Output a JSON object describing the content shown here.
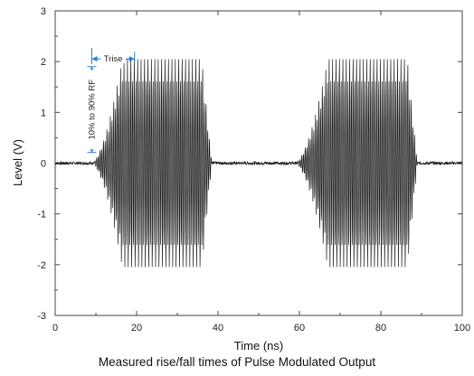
{
  "chart_data": {
    "type": "line",
    "title": "",
    "xlabel": "Time (ns)",
    "ylabel": "Level (V)",
    "xlim": [
      0,
      100
    ],
    "ylim": [
      -3,
      3
    ],
    "xticks": [
      "0",
      "20",
      "40",
      "60",
      "80",
      "100"
    ],
    "yticks": [
      "3",
      "2",
      "1",
      "0",
      "-1",
      "-2",
      "-3"
    ],
    "grid": false,
    "legend": "none",
    "line_color": "#1a1a1a",
    "annotation_color": "#2a7fd4",
    "series": [
      {
        "pulses": [
          {
            "rise_start": 9.0,
            "full_on": 16.5,
            "fall_start": 36.0,
            "off": 38.5
          },
          {
            "rise_start": 59.0,
            "full_on": 67.0,
            "fall_start": 86.5,
            "off": 89.0
          }
        ],
        "peak_amplitude": 2.1,
        "inner_envelope": 1.65,
        "baseline": 0.0
      }
    ],
    "annotations": {
      "trise_label": "Trise",
      "trise_range": [
        9.0,
        19.5
      ],
      "trise_level": 2.0,
      "rf_label": "10% to 90% RF",
      "rf_range": [
        0.21,
        1.9
      ],
      "rf_x": 9.0
    }
  },
  "caption": "Measured rise/fall times of Pulse Modulated Output"
}
